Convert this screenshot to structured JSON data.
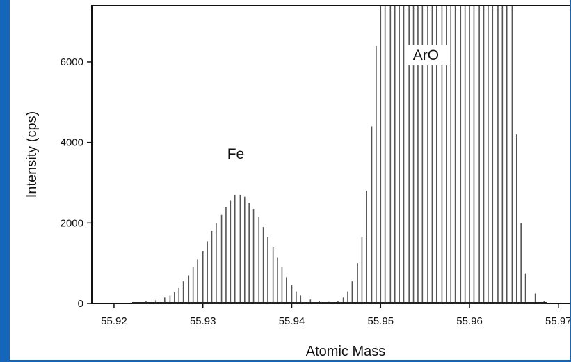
{
  "chart_data": {
    "type": "bar",
    "title": "",
    "xlabel": "Atomic Mass",
    "ylabel": "Intensity (cps)",
    "xlim": [
      55.9175,
      55.9715
    ],
    "ylim": [
      0,
      7400
    ],
    "x_ticks": [
      "55.92",
      "55.93",
      "55.94",
      "55.95",
      "55.96",
      "55.97"
    ],
    "y_ticks": [
      "0",
      "2000",
      "4000",
      "6000"
    ],
    "grid": false,
    "annotations": [
      {
        "text": "Fe",
        "x": 55.9337,
        "y": 3600
      },
      {
        "text": "ArO",
        "x": 55.9551,
        "y": 6050
      }
    ],
    "series": [
      {
        "x": [
          55.9225,
          55.9236,
          55.9247,
          55.9257,
          55.9263,
          55.9268,
          55.9273,
          55.9278,
          55.9284,
          55.9289,
          55.9294,
          55.93,
          55.9305,
          55.931,
          55.9315,
          55.9321,
          55.9326,
          55.9331,
          55.9336,
          55.9342,
          55.9347,
          55.9352,
          55.9357,
          55.9363,
          55.9368,
          55.9373,
          55.9379,
          55.9384,
          55.9389,
          55.9394,
          55.94,
          55.9405,
          55.941,
          55.9421,
          55.9431,
          55.9442,
          55.9452,
          55.9458,
          55.9463,
          55.9468,
          55.9474,
          55.9479,
          55.9484,
          55.949,
          55.9495,
          55.95,
          55.9505,
          55.9511,
          55.9516,
          55.9521,
          55.9526,
          55.9532,
          55.9537,
          55.9542,
          55.9547,
          55.9553,
          55.9558,
          55.9563,
          55.9569,
          55.9574,
          55.9579,
          55.9584,
          55.959,
          55.9595,
          55.96,
          55.9605,
          55.9611,
          55.9616,
          55.9621,
          55.9626,
          55.9632,
          55.9637,
          55.9642,
          55.9648,
          55.9653,
          55.9658,
          55.9663,
          55.9674,
          55.9684
        ],
        "values": [
          30,
          50,
          80,
          150,
          200,
          280,
          400,
          550,
          700,
          900,
          1100,
          1300,
          1550,
          1800,
          2000,
          2200,
          2400,
          2550,
          2700,
          2700,
          2650,
          2500,
          2350,
          2150,
          1900,
          1650,
          1400,
          1150,
          900,
          650,
          450,
          300,
          200,
          100,
          60,
          40,
          60,
          150,
          300,
          550,
          1000,
          1650,
          2800,
          4400,
          6400,
          7400,
          7400,
          7400,
          7400,
          7400,
          7400,
          7400,
          7400,
          7400,
          7400,
          7400,
          7400,
          7400,
          7400,
          7400,
          7400,
          7400,
          7400,
          7400,
          7400,
          7400,
          7400,
          7400,
          7400,
          7400,
          7400,
          7400,
          7400,
          7400,
          4200,
          2000,
          750,
          250,
          60
        ]
      }
    ]
  }
}
